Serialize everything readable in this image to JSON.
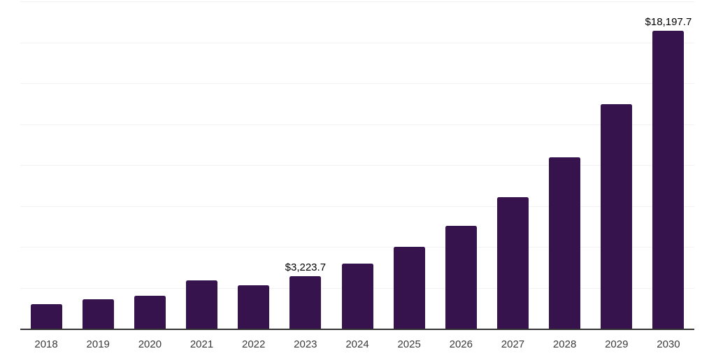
{
  "chart_data": {
    "type": "bar",
    "title": "",
    "xlabel": "",
    "ylabel": "",
    "categories": [
      "2018",
      "2019",
      "2020",
      "2021",
      "2022",
      "2023",
      "2024",
      "2025",
      "2026",
      "2027",
      "2028",
      "2029",
      "2030"
    ],
    "values": [
      1490,
      1800,
      2015,
      2940,
      2630,
      3223.7,
      3980,
      4990,
      6300,
      8040,
      10460,
      13700,
      18197.7
    ],
    "data_labels": {
      "2023": "$3,223.7",
      "2030": "$18,197.7"
    },
    "ylim": [
      0,
      20000
    ],
    "gridline_step": 2500,
    "grid": true,
    "legend": "none",
    "colors": {
      "bar": "#36134d",
      "gridline": "#f2f2f2",
      "axis_line": "#333333",
      "tick_label": "#3a3a3a",
      "value_label": "#000000",
      "background": "#ffffff"
    }
  }
}
